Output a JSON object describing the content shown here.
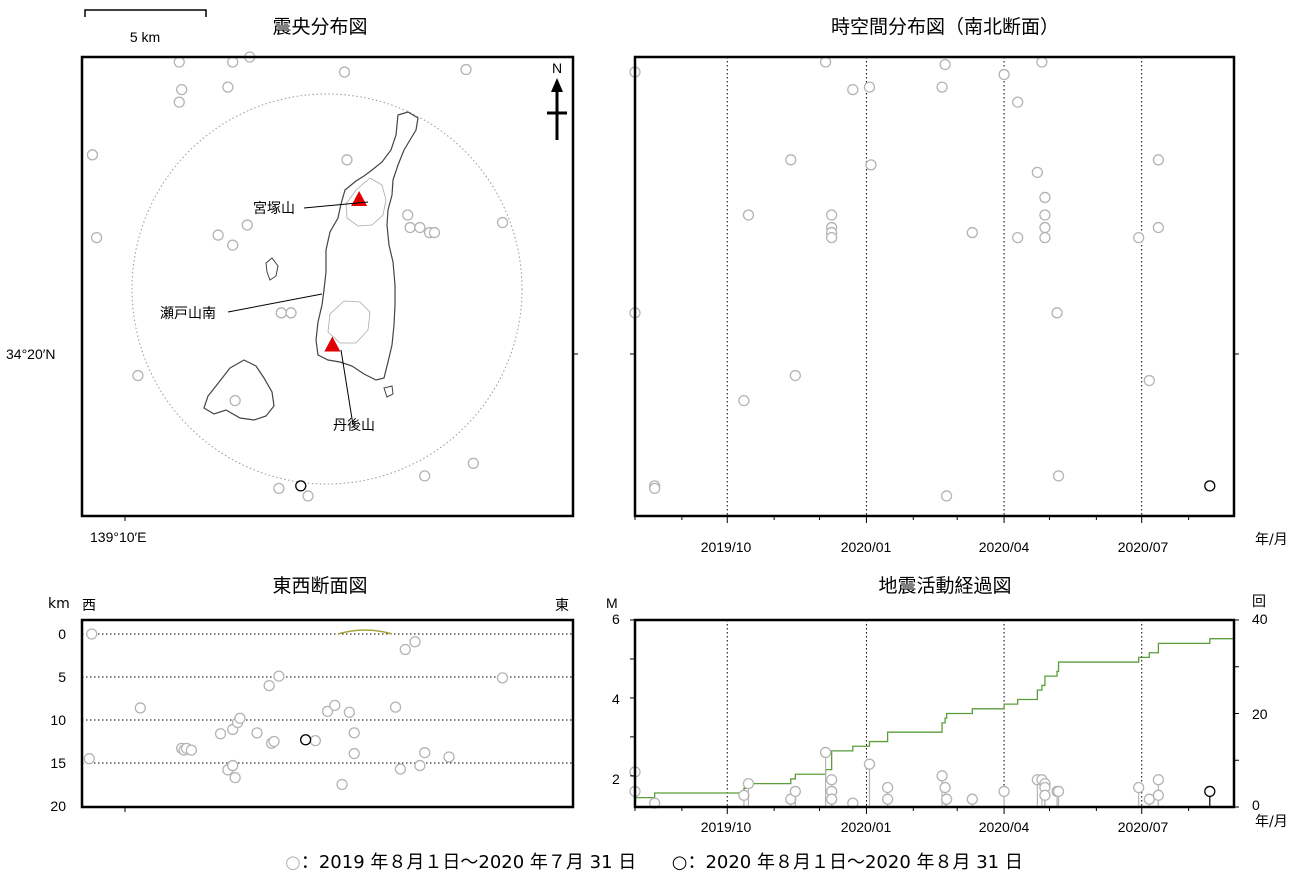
{
  "scale_bar": {
    "label": "5 km"
  },
  "epicenter_map": {
    "title": "震央分布図",
    "north_label": "N",
    "lat_label": "34°20′N",
    "lon_label": "139°10′E",
    "volcano_labels": [
      "宮塚山",
      "瀬戸山南",
      "丹後山"
    ]
  },
  "time_section": {
    "title": "時空間分布図（南北断面）",
    "axis_unit": "年/月",
    "ticks": [
      "2019/10",
      "2020/01",
      "2020/04",
      "2020/07"
    ]
  },
  "ew_section": {
    "title": "東西断面図",
    "depth_unit": "km",
    "west": "西",
    "east": "東",
    "depth_ticks": [
      "0",
      "5",
      "10",
      "15",
      "20"
    ]
  },
  "activity": {
    "title": "地震活動経過図",
    "m_label": "M",
    "count_label": "回",
    "axis_unit": "年/月",
    "m_ticks": [
      "6",
      "4",
      "2"
    ],
    "count_ticks": [
      "40",
      "20",
      "0"
    ],
    "ticks": [
      "2019/10",
      "2020/01",
      "2020/04",
      "2020/07"
    ]
  },
  "legend": {
    "old_symbol": "○",
    "old_text": "：2019 年８月１日～2020 年７月 31 日",
    "new_symbol": "○",
    "new_text": "：2020 年８月１日～2020 年８月 31 日"
  },
  "colors": {
    "old_event": "#b4b4b4",
    "new_event": "#000000",
    "cumulative_line": "#5a9e3c",
    "volcano": "#e00000"
  },
  "chart_data": [
    {
      "type": "scatter",
      "name": "epicenter_map",
      "x_unit": "km east of map west edge",
      "y_unit": "km north of map south edge",
      "xlim": [
        0,
        20.2
      ],
      "ylim": [
        0,
        18.3
      ],
      "old_events": [
        [
          0.43,
          14.4
        ],
        [
          4.0,
          18.1
        ],
        [
          4.1,
          17.0
        ],
        [
          4.0,
          16.5
        ],
        [
          6.2,
          18.1
        ],
        [
          6.9,
          18.3
        ],
        [
          6.0,
          17.1
        ],
        [
          10.8,
          17.7
        ],
        [
          15.8,
          17.8
        ],
        [
          0.6,
          11.1
        ],
        [
          6.8,
          11.6
        ],
        [
          5.6,
          11.2
        ],
        [
          6.2,
          10.8
        ],
        [
          10.9,
          14.2
        ],
        [
          13.4,
          12.0
        ],
        [
          13.5,
          11.5
        ],
        [
          13.9,
          11.5
        ],
        [
          14.3,
          11.3
        ],
        [
          14.5,
          11.3
        ],
        [
          17.3,
          11.7
        ],
        [
          8.2,
          8.1
        ],
        [
          8.6,
          8.1
        ],
        [
          2.3,
          5.6
        ],
        [
          6.3,
          4.6
        ],
        [
          8.1,
          1.1
        ],
        [
          9.3,
          0.8
        ],
        [
          14.1,
          1.6
        ],
        [
          16.1,
          2.1
        ]
      ],
      "new_events": [
        [
          9.0,
          1.2
        ]
      ],
      "volcanoes": [
        {
          "name": "宮塚山",
          "x": 11.4,
          "y": 12.6
        },
        {
          "name": "丹後山",
          "x": 10.3,
          "y": 6.8
        }
      ]
    },
    {
      "type": "scatter",
      "name": "time_section",
      "x_unit": "date",
      "y_unit": "km north (south-north section)",
      "xlim": [
        "2019-08-01",
        "2020-08-31"
      ],
      "ylim": [
        0,
        18.3
      ],
      "old_events": [
        [
          "2019-08-01",
          17.7
        ],
        [
          "2019-08-01",
          8.1
        ],
        [
          "2019-08-14",
          1.2
        ],
        [
          "2019-08-14",
          1.1
        ],
        [
          "2019-10-12",
          4.6
        ],
        [
          "2019-10-15",
          12.0
        ],
        [
          "2019-11-12",
          14.2
        ],
        [
          "2019-11-15",
          5.6
        ],
        [
          "2019-12-09",
          12.0
        ],
        [
          "2019-12-09",
          11.5
        ],
        [
          "2019-12-09",
          11.3
        ],
        [
          "2019-12-09",
          11.1
        ],
        [
          "2019-12-05",
          18.1
        ],
        [
          "2019-12-23",
          17.0
        ],
        [
          "2020-01-03",
          17.1
        ],
        [
          "2020-01-04",
          14.0
        ],
        [
          "2020-02-20",
          17.1
        ],
        [
          "2020-02-22",
          18.0
        ],
        [
          "2020-02-23",
          0.8
        ],
        [
          "2020-03-11",
          11.3
        ],
        [
          "2020-04-01",
          17.6
        ],
        [
          "2020-04-10",
          16.5
        ],
        [
          "2020-04-10",
          11.1
        ],
        [
          "2020-04-23",
          13.7
        ],
        [
          "2020-04-26",
          18.1
        ],
        [
          "2020-04-28",
          12.7
        ],
        [
          "2020-04-28",
          12.0
        ],
        [
          "2020-04-28",
          11.5
        ],
        [
          "2020-04-28",
          11.1
        ],
        [
          "2020-05-06",
          8.1
        ],
        [
          "2020-05-07",
          1.6
        ],
        [
          "2020-06-29",
          11.1
        ],
        [
          "2020-07-06",
          5.4
        ],
        [
          "2020-07-12",
          14.2
        ],
        [
          "2020-07-12",
          11.5
        ]
      ],
      "new_events": [
        [
          "2020-08-15",
          1.2
        ]
      ],
      "date_ticks": [
        "2019-10-01",
        "2020-01-01",
        "2020-04-01",
        "2020-07-01"
      ]
    },
    {
      "type": "scatter",
      "name": "ew_section",
      "x_unit": "km east",
      "y_unit": "depth km",
      "xlim": [
        0,
        20.2
      ],
      "ylim": [
        0,
        20
      ],
      "old_events": [
        [
          0.4,
          0
        ],
        [
          0.3,
          14.5
        ],
        [
          2.4,
          8.6
        ],
        [
          4.1,
          13.3
        ],
        [
          4.2,
          13.5
        ],
        [
          4.3,
          13.3
        ],
        [
          4.5,
          13.5
        ],
        [
          5.7,
          11.6
        ],
        [
          6.2,
          11.1
        ],
        [
          6.4,
          10.3
        ],
        [
          6.5,
          9.8
        ],
        [
          6.0,
          15.8
        ],
        [
          6.3,
          16.7
        ],
        [
          6.2,
          15.3
        ],
        [
          7.2,
          11.5
        ],
        [
          7.7,
          6.0
        ],
        [
          8.1,
          4.9
        ],
        [
          7.8,
          12.7
        ],
        [
          7.9,
          12.5
        ],
        [
          9.6,
          12.4
        ],
        [
          10.1,
          9.0
        ],
        [
          10.4,
          8.3
        ],
        [
          10.7,
          17.5
        ],
        [
          11.0,
          9.1
        ],
        [
          11.2,
          11.5
        ],
        [
          11.2,
          13.9
        ],
        [
          12.9,
          8.5
        ],
        [
          13.3,
          1.8
        ],
        [
          13.7,
          0.9
        ],
        [
          13.1,
          15.7
        ],
        [
          13.9,
          15.3
        ],
        [
          14.1,
          13.8
        ],
        [
          15.1,
          14.3
        ],
        [
          17.3,
          5.1
        ]
      ],
      "new_events": [
        [
          9.2,
          12.3
        ]
      ]
    },
    {
      "type": "line",
      "name": "activity",
      "x_unit": "date",
      "ylim_left": [
        1.2,
        6
      ],
      "ylim_right": [
        0,
        40
      ],
      "magnitude_old": [
        [
          "2019-08-01",
          2.1
        ],
        [
          "2019-08-01",
          1.6
        ],
        [
          "2019-08-14",
          1.3
        ],
        [
          "2019-10-12",
          1.5
        ],
        [
          "2019-10-15",
          1.8
        ],
        [
          "2019-11-12",
          1.4
        ],
        [
          "2019-11-15",
          1.6
        ],
        [
          "2019-12-05",
          2.6
        ],
        [
          "2019-12-09",
          1.9
        ],
        [
          "2019-12-09",
          1.6
        ],
        [
          "2019-12-09",
          1.4
        ],
        [
          "2019-12-23",
          1.3
        ],
        [
          "2020-01-03",
          2.3
        ],
        [
          "2020-01-15",
          1.7
        ],
        [
          "2020-01-15",
          1.4
        ],
        [
          "2020-02-20",
          2.0
        ],
        [
          "2020-02-22",
          1.7
        ],
        [
          "2020-02-23",
          1.4
        ],
        [
          "2020-03-11",
          1.4
        ],
        [
          "2020-04-01",
          1.6
        ],
        [
          "2020-04-23",
          1.9
        ],
        [
          "2020-04-26",
          1.9
        ],
        [
          "2020-04-28",
          1.8
        ],
        [
          "2020-04-28",
          1.7
        ],
        [
          "2020-04-28",
          1.5
        ],
        [
          "2020-05-06",
          1.6
        ],
        [
          "2020-05-07",
          1.6
        ],
        [
          "2020-06-29",
          1.7
        ],
        [
          "2020-07-06",
          1.4
        ],
        [
          "2020-07-12",
          1.9
        ],
        [
          "2020-07-12",
          1.5
        ]
      ],
      "magnitude_new": [
        [
          "2020-08-15",
          1.6
        ]
      ],
      "cumulative": [
        [
          "2019-08-01",
          2
        ],
        [
          "2019-08-14",
          3
        ],
        [
          "2019-10-12",
          4
        ],
        [
          "2019-10-15",
          5
        ],
        [
          "2019-11-12",
          6
        ],
        [
          "2019-11-15",
          7
        ],
        [
          "2019-12-05",
          8
        ],
        [
          "2019-12-09",
          12
        ],
        [
          "2019-12-23",
          13
        ],
        [
          "2020-01-03",
          14
        ],
        [
          "2020-01-15",
          16
        ],
        [
          "2020-02-20",
          18
        ],
        [
          "2020-02-22",
          19
        ],
        [
          "2020-02-23",
          20
        ],
        [
          "2020-03-11",
          21
        ],
        [
          "2020-04-01",
          22
        ],
        [
          "2020-04-10",
          23
        ],
        [
          "2020-04-23",
          25
        ],
        [
          "2020-04-26",
          26
        ],
        [
          "2020-04-28",
          28
        ],
        [
          "2020-05-06",
          29
        ],
        [
          "2020-05-07",
          31
        ],
        [
          "2020-06-29",
          32
        ],
        [
          "2020-07-06",
          33
        ],
        [
          "2020-07-12",
          35
        ],
        [
          "2020-08-15",
          36
        ]
      ],
      "date_ticks": [
        "2019-10-01",
        "2020-01-01",
        "2020-04-01",
        "2020-07-01"
      ]
    }
  ]
}
